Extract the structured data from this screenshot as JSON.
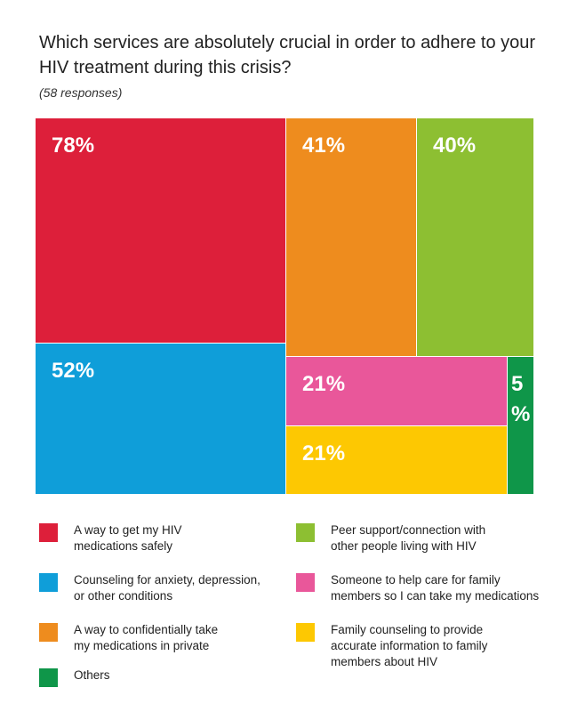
{
  "header": {
    "title": "Which services are absolutely crucial in order to adhere to your HIV treatment during this crisis?",
    "subtitle": "(58 responses)"
  },
  "chart_data": {
    "type": "treemap",
    "title": "Which services are absolutely crucial in order to adhere to your HIV treatment during this crisis?",
    "subtitle": "(58 responses)",
    "unit": "%",
    "items": [
      {
        "name": "A way to get my HIV medications safely",
        "value": 78,
        "label": "78%",
        "color": "#dd1f3a"
      },
      {
        "name": "Counseling for anxiety, depression, or other conditions",
        "value": 52,
        "label": "52%",
        "color": "#0f9ed9"
      },
      {
        "name": "A way to confidentially take my medications in private",
        "value": 41,
        "label": "41%",
        "color": "#ee8c1e"
      },
      {
        "name": "Peer support/connection with other people living with HIV",
        "value": 40,
        "label": "40%",
        "color": "#8dbf32"
      },
      {
        "name": "Someone to help care for family members so I can take my medications",
        "value": 21,
        "label": "21%",
        "color": "#e9579a"
      },
      {
        "name": "Family counseling to provide accurate information to family members about HIV",
        "value": 21,
        "label": "21%",
        "color": "#fdc802"
      },
      {
        "name": "Others",
        "value": 5,
        "label_lines": [
          "5",
          "%"
        ],
        "color": "#0f9649"
      }
    ]
  },
  "legend": {
    "items": [
      {
        "text": "A way to get my HIV\nmedications safely",
        "color": "#dd1f3a"
      },
      {
        "text": "Counseling for anxiety, depression,\nor other conditions",
        "color": "#0f9ed9"
      },
      {
        "text": "A way to confidentially take\nmy medications in private",
        "color": "#ee8c1e"
      },
      {
        "text": "Others",
        "color": "#0f9649"
      },
      {
        "text": "Peer support/connection with\nother people living with HIV",
        "color": "#8dbf32"
      },
      {
        "text": "Someone to help care for family\nmembers so I can take my medications",
        "color": "#e9579a"
      },
      {
        "text": "Family counseling to provide\naccurate information to family\nmembers about HIV",
        "color": "#fdc802"
      }
    ]
  }
}
